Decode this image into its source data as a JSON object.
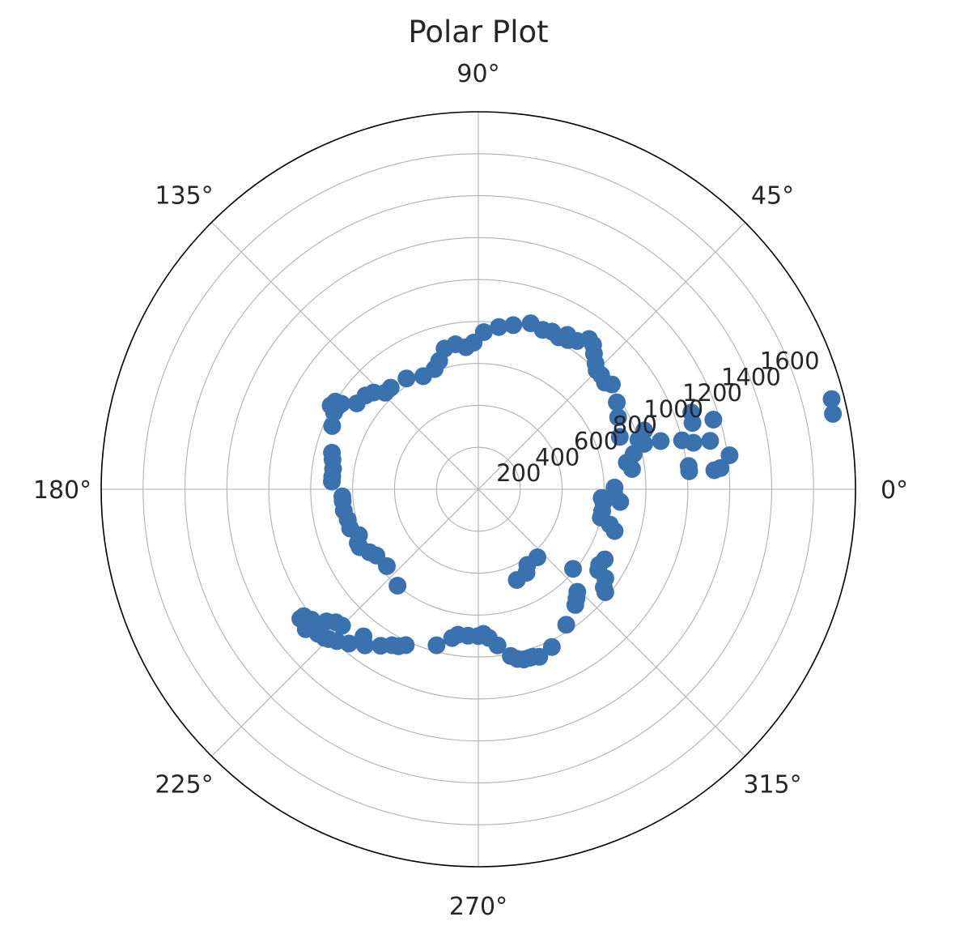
{
  "chart_data": {
    "type": "scatter",
    "projection": "polar",
    "title": "Polar Plot",
    "angle_ticks": [
      {
        "deg": 0,
        "label": "0°"
      },
      {
        "deg": 45,
        "label": "45°"
      },
      {
        "deg": 90,
        "label": "90°"
      },
      {
        "deg": 135,
        "label": "135°"
      },
      {
        "deg": 180,
        "label": "180°"
      },
      {
        "deg": 225,
        "label": "225°"
      },
      {
        "deg": 270,
        "label": "270°"
      },
      {
        "deg": 315,
        "label": "315°"
      }
    ],
    "radial_ticks": [
      {
        "r": 200,
        "label": "200"
      },
      {
        "r": 400,
        "label": "400"
      },
      {
        "r": 600,
        "label": "600"
      },
      {
        "r": 800,
        "label": "800"
      },
      {
        "r": 1000,
        "label": "1000"
      },
      {
        "r": 1200,
        "label": "1200"
      },
      {
        "r": 1400,
        "label": "1400"
      },
      {
        "r": 1600,
        "label": "1600"
      }
    ],
    "rlim": [
      0,
      1800
    ],
    "grid": true,
    "marker_color": "#3a72b0",
    "series": [
      {
        "points": [
          [
            0.7,
            650
          ],
          [
            -2.2,
            650
          ],
          [
            -5.1,
            680
          ],
          [
            7.5,
            740
          ],
          [
            10.2,
            720
          ],
          [
            12.8,
            760
          ],
          [
            15.3,
            820
          ],
          [
            17.2,
            800
          ],
          [
            19.5,
            840
          ],
          [
            14.8,
            900
          ],
          [
            13.5,
            1000
          ],
          [
            12.2,
            1050
          ],
          [
            11.8,
            1130
          ],
          [
            16.5,
            1170
          ],
          [
            17.2,
            1070
          ],
          [
            19.8,
            1080
          ],
          [
            4.9,
            1010
          ],
          [
            6.3,
            1010
          ],
          [
            4.6,
            1130
          ],
          [
            5.0,
            1160
          ],
          [
            7.7,
            1210
          ],
          [
            14.3,
            1740
          ],
          [
            12.0,
            1730
          ],
          [
            20.3,
            720
          ],
          [
            27.2,
            750
          ],
          [
            32.1,
            780
          ],
          [
            38.1,
            810
          ],
          [
            40.1,
            790
          ],
          [
            42.9,
            800
          ],
          [
            45.1,
            800
          ],
          [
            47.0,
            820
          ],
          [
            49.5,
            850
          ],
          [
            51.5,
            880
          ],
          [
            53.6,
            890
          ],
          [
            56.3,
            850
          ],
          [
            59.0,
            830
          ],
          [
            60.0,
            850
          ],
          [
            62.1,
            820
          ],
          [
            64.9,
            830
          ],
          [
            68.0,
            820
          ],
          [
            72.5,
            830
          ],
          [
            78.0,
            800
          ],
          [
            82.8,
            780
          ],
          [
            88.0,
            750
          ],
          [
            91.8,
            700
          ],
          [
            95.0,
            680
          ],
          [
            99.0,
            700
          ],
          [
            103.5,
            690
          ],
          [
            107.0,
            640
          ],
          [
            110.0,
            610
          ],
          [
            116.0,
            600
          ],
          [
            123.0,
            630
          ],
          [
            130.8,
            640
          ],
          [
            134.0,
            640
          ],
          [
            137.3,
            680
          ],
          [
            140.3,
            700
          ],
          [
            144.8,
            710
          ],
          [
            148.0,
            770
          ],
          [
            150.0,
            780
          ],
          [
            148.5,
            800
          ],
          [
            150.5,
            810
          ],
          [
            152.0,
            780
          ],
          [
            156.6,
            760
          ],
          [
            166.0,
            720
          ],
          [
            168.5,
            710
          ],
          [
            172.0,
            700
          ],
          [
            175.0,
            700
          ],
          [
            177.0,
            700
          ],
          [
            183.0,
            650
          ],
          [
            185.0,
            650
          ],
          [
            189.0,
            650
          ],
          [
            193.0,
            640
          ],
          [
            197.0,
            640
          ],
          [
            201.0,
            610
          ],
          [
            204.0,
            630
          ],
          [
            206.0,
            630
          ],
          [
            210.0,
            600
          ],
          [
            213.0,
            580
          ],
          [
            220.0,
            570
          ],
          [
            230.0,
            600
          ],
          [
            216.0,
            1030
          ],
          [
            218.0,
            1010
          ],
          [
            221.0,
            960
          ],
          [
            223.0,
            930
          ],
          [
            225.0,
            920
          ],
          [
            232.0,
            890
          ],
          [
            216.0,
            1050
          ],
          [
            219.0,
            1060
          ],
          [
            222.0,
            1030
          ],
          [
            224.0,
            1020
          ],
          [
            225.0,
            1010
          ],
          [
            227.0,
            990
          ],
          [
            230.0,
            960
          ],
          [
            234.0,
            920
          ],
          [
            238.0,
            880
          ],
          [
            241.0,
            850
          ],
          [
            243.0,
            840
          ],
          [
            245.0,
            820
          ],
          [
            255.0,
            770
          ],
          [
            260.0,
            720
          ],
          [
            262.0,
            700
          ],
          [
            266.0,
            700
          ],
          [
            270.0,
            700
          ],
          [
            272.0,
            690
          ],
          [
            274.0,
            710
          ],
          [
            277.0,
            750
          ],
          [
            281.0,
            810
          ],
          [
            283.0,
            830
          ],
          [
            285.0,
            840
          ],
          [
            287.0,
            840
          ],
          [
            288.0,
            840
          ],
          [
            290.0,
            850
          ],
          [
            295.0,
            830
          ],
          [
            303.0,
            770
          ],
          [
            310.0,
            720
          ],
          [
            312.0,
            700
          ],
          [
            314.0,
            680
          ],
          [
            320.0,
            590
          ],
          [
            300.0,
            460
          ],
          [
            303.0,
            430
          ],
          [
            311.0,
            430
          ],
          [
            293.0,
            470
          ],
          [
            331.0,
            690
          ],
          [
            328.0,
            680
          ],
          [
            326.0,
            690
          ],
          [
            325.0,
            740
          ],
          [
            322.0,
            760
          ],
          [
            321.0,
            780
          ],
          [
            343.0,
            680
          ],
          [
            345.0,
            650
          ],
          [
            347.0,
            600
          ],
          [
            350.0,
            600
          ],
          [
            354.0,
            600
          ],
          [
            356.0,
            590
          ]
        ]
      }
    ]
  }
}
